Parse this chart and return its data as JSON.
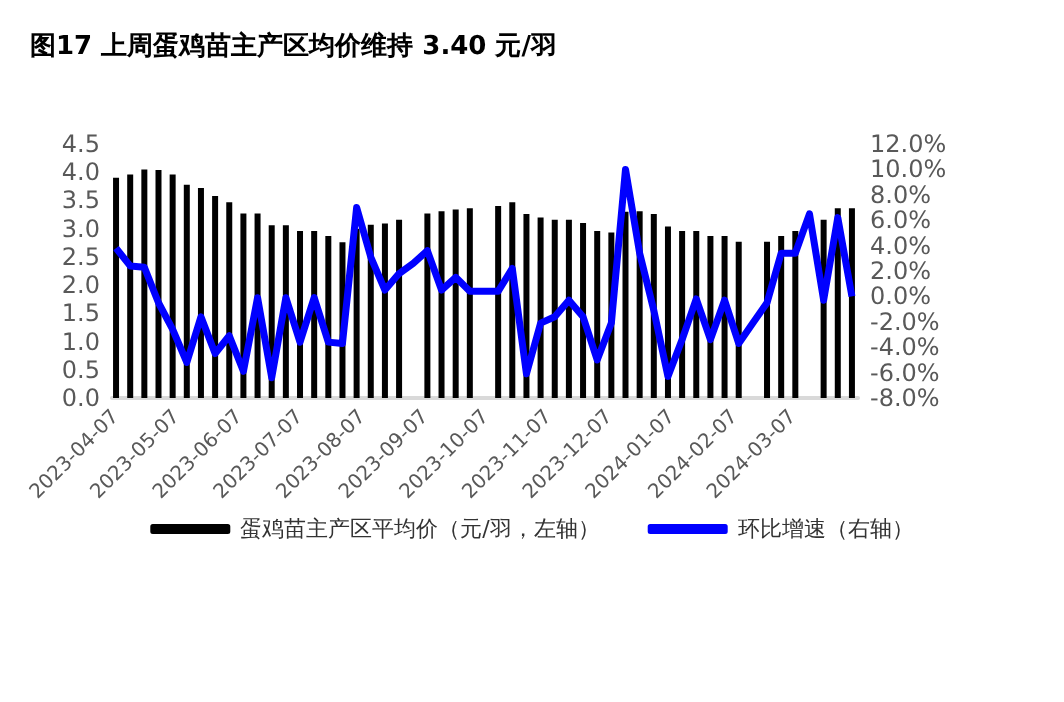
{
  "chart_data": {
    "type": "bar",
    "title": "图17 上周蛋鸡苗主产区均价维持 3.40 元/羽",
    "x": [
      "2023-04-07",
      "2023-04-14",
      "2023-04-21",
      "2023-04-28",
      "2023-05-05",
      "2023-05-12",
      "2023-05-19",
      "2023-05-26",
      "2023-06-02",
      "2023-06-09",
      "2023-06-16",
      "2023-06-23",
      "2023-06-30",
      "2023-07-07",
      "2023-07-14",
      "2023-07-21",
      "2023-07-28",
      "2023-08-04",
      "2023-08-11",
      "2023-08-18",
      "2023-08-25",
      "2023-09-01",
      "2023-09-08",
      "2023-09-15",
      "2023-09-22",
      "2023-09-29",
      "2023-10-06",
      "2023-10-13",
      "2023-10-20",
      "2023-10-27",
      "2023-11-03",
      "2023-11-10",
      "2023-11-17",
      "2023-11-24",
      "2023-12-01",
      "2023-12-08",
      "2023-12-15",
      "2023-12-22",
      "2023-12-29",
      "2024-01-05",
      "2024-01-12",
      "2024-01-19",
      "2024-01-26",
      "2024-02-02",
      "2024-02-09",
      "2024-02-16",
      "2024-02-23",
      "2024-03-01",
      "2024-03-08",
      "2024-03-15",
      "2024-03-22",
      "2024-03-29",
      "2024-04-05"
    ],
    "series": [
      {
        "name": "蛋鸡苗主产区平均价（元/羽，左轴）",
        "color": "#000000",
        "values": [
          3.9,
          3.96,
          4.05,
          4.04,
          3.96,
          3.78,
          3.72,
          3.58,
          3.47,
          3.27,
          3.27,
          3.06,
          3.06,
          2.96,
          2.96,
          2.87,
          2.76,
          3.0,
          3.07,
          3.09,
          3.16,
          null,
          3.27,
          3.31,
          3.34,
          3.36,
          null,
          3.4,
          3.47,
          3.26,
          3.2,
          3.16,
          3.16,
          3.1,
          2.96,
          2.93,
          3.3,
          3.31,
          3.26,
          3.04,
          2.96,
          2.96,
          2.87,
          2.87,
          2.77,
          null,
          2.77,
          2.87,
          2.96,
          null,
          3.16,
          3.36,
          3.36
        ]
      },
      {
        "name": "环比增速（右轴）",
        "type": "line",
        "axis": "y2",
        "color": "#0000ff",
        "values": [
          3.8,
          2.4,
          2.3,
          -0.5,
          -2.6,
          -5.2,
          -1.6,
          -4.5,
          -3.1,
          -5.9,
          -0.1,
          -6.4,
          -0.1,
          -3.6,
          -0.1,
          -3.6,
          -3.7,
          7.0,
          3.1,
          0.5,
          1.8,
          2.6,
          3.6,
          0.5,
          1.5,
          0.4,
          0.4,
          0.4,
          2.2,
          -6.1,
          -2.1,
          -1.6,
          -0.3,
          -1.6,
          -5.0,
          -2.1,
          10.0,
          3.4,
          -1.1,
          -6.3,
          -3.4,
          -0.2,
          -3.4,
          -0.3,
          -3.7,
          -2.1,
          -0.5,
          3.4,
          3.4,
          6.5,
          -0.3,
          6.2,
          0.0
        ]
      }
    ],
    "xlim": [
      "2023-04-05",
      "2024-04-08"
    ],
    "xticks": [
      {
        "value": "2023-04-07",
        "label": "2023-04-07"
      },
      {
        "value": "2023-05-07",
        "label": "2023-05-07"
      },
      {
        "value": "2023-06-07",
        "label": "2023-06-07"
      },
      {
        "value": "2023-07-07",
        "label": "2023-07-07"
      },
      {
        "value": "2023-08-07",
        "label": "2023-08-07"
      },
      {
        "value": "2023-09-07",
        "label": "2023-09-07"
      },
      {
        "value": "2023-10-07",
        "label": "2023-10-07"
      },
      {
        "value": "2023-11-07",
        "label": "2023-11-07"
      },
      {
        "value": "2023-12-07",
        "label": "2023-12-07"
      },
      {
        "value": "2024-01-07",
        "label": "2024-01-07"
      },
      {
        "value": "2024-02-07",
        "label": "2024-02-07"
      },
      {
        "value": "2024-03-07",
        "label": "2024-03-07"
      }
    ],
    "ylim": [
      0,
      4.5
    ],
    "yticks": [
      {
        "value": 0,
        "label": "0.0"
      },
      {
        "value": 0.5,
        "label": "0.5"
      },
      {
        "value": 1,
        "label": "1.0"
      },
      {
        "value": 1.5,
        "label": "1.5"
      },
      {
        "value": 2,
        "label": "2.0"
      },
      {
        "value": 2.5,
        "label": "2.5"
      },
      {
        "value": 3,
        "label": "3.0"
      },
      {
        "value": 3.5,
        "label": "3.5"
      },
      {
        "value": 4,
        "label": "4.0"
      },
      {
        "value": 4.5,
        "label": "4.5"
      }
    ],
    "y2lim": [
      -8,
      12
    ],
    "y2ticks": [
      {
        "value": -8,
        "label": "-8.0%"
      },
      {
        "value": -6,
        "label": "-6.0%"
      },
      {
        "value": -4,
        "label": "-4.0%"
      },
      {
        "value": -2,
        "label": "-2.0%"
      },
      {
        "value": 0,
        "label": "0.0%"
      },
      {
        "value": 2,
        "label": "2.0%"
      },
      {
        "value": 4,
        "label": "4.0%"
      },
      {
        "value": 6,
        "label": "6.0%"
      },
      {
        "value": 8,
        "label": "8.0%"
      },
      {
        "value": 10,
        "label": "10.0%"
      },
      {
        "value": 12,
        "label": "12.0%"
      }
    ],
    "grid": false,
    "legend": "bottom"
  }
}
